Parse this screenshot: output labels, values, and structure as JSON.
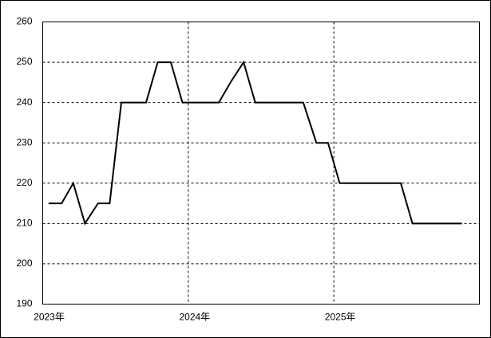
{
  "chart_data": {
    "type": "line",
    "x": [
      2023.04,
      2023.13,
      2023.21,
      2023.29,
      2023.38,
      2023.46,
      2023.54,
      2023.63,
      2023.71,
      2023.79,
      2023.88,
      2023.96,
      2024.04,
      2024.13,
      2024.21,
      2024.29,
      2024.38,
      2024.46,
      2024.54,
      2024.63,
      2024.71,
      2024.79,
      2024.88,
      2024.96,
      2025.04,
      2025.13,
      2025.21,
      2025.29,
      2025.38,
      2025.46,
      2025.54,
      2025.63,
      2025.71,
      2025.79,
      2025.88
    ],
    "values": [
      215,
      215,
      220,
      210,
      215,
      215,
      240,
      240,
      240,
      250,
      250,
      240,
      240,
      240,
      240,
      245,
      250,
      240,
      240,
      240,
      240,
      240,
      230,
      230,
      220,
      220,
      220,
      220,
      220,
      220,
      210,
      210,
      210,
      210,
      210
    ],
    "color": "#000000",
    "xlim": [
      2023,
      2026
    ],
    "xticks": [
      {
        "value": 2023,
        "label": "2023年"
      },
      {
        "value": 2024,
        "label": "2024年"
      },
      {
        "value": 2025,
        "label": "2025年"
      }
    ],
    "ylim": [
      190,
      260
    ],
    "yticks": [
      190,
      200,
      210,
      220,
      230,
      240,
      250,
      260
    ],
    "grid": true
  }
}
